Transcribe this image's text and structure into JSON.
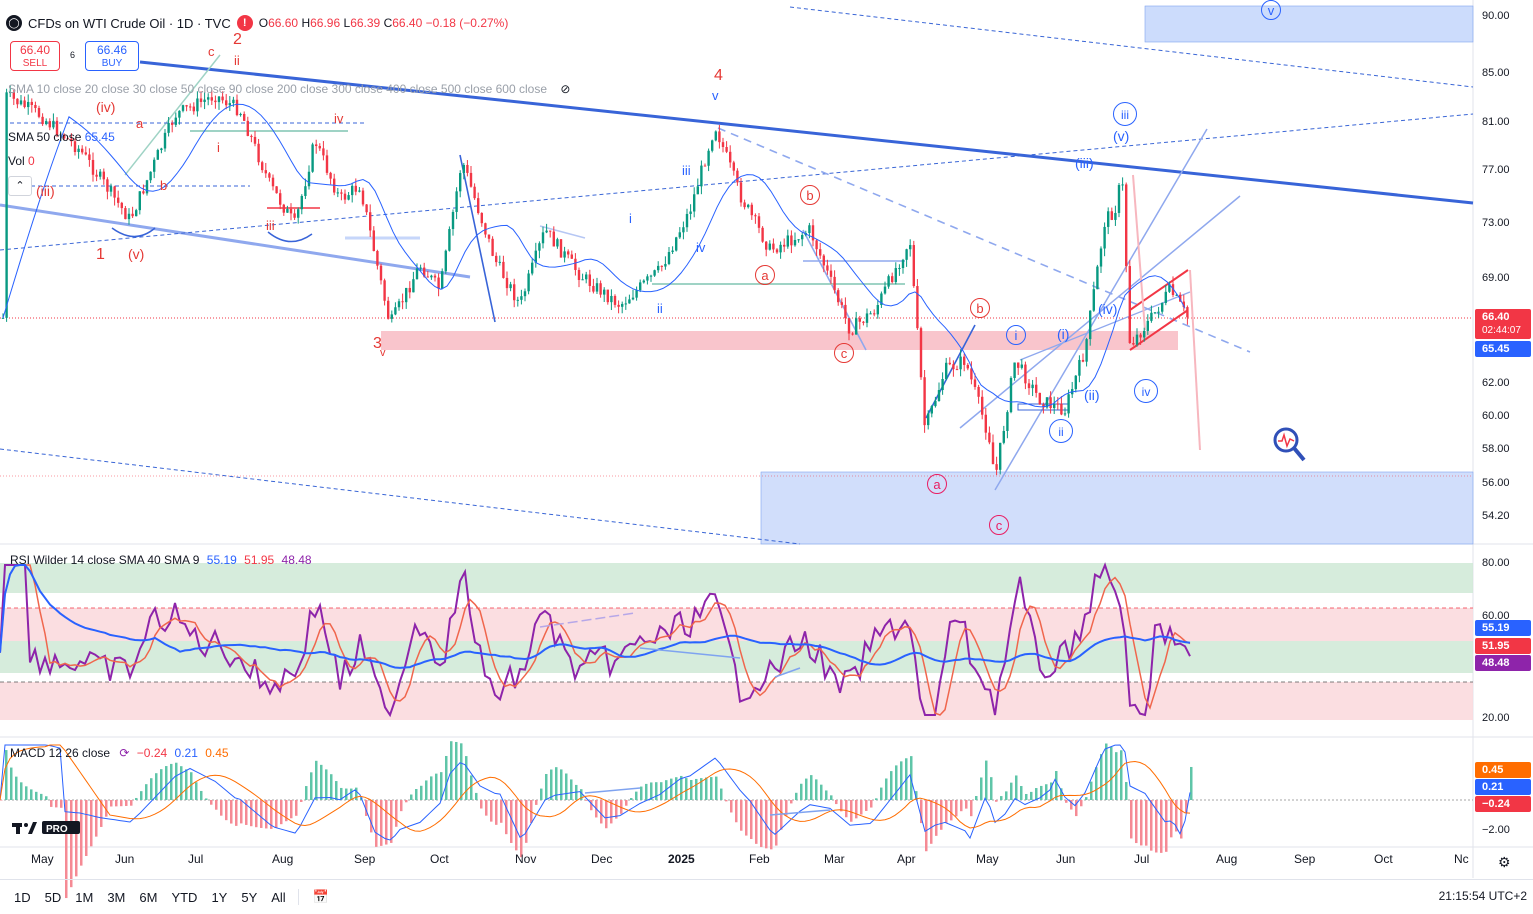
{
  "header": {
    "symbol_title": "CFDs on WTI Crude Oil · 1D · TVC",
    "ohlc": {
      "o_label": "O",
      "o": "66.60",
      "h_label": "H",
      "h": "66.96",
      "l_label": "L",
      "l": "66.39",
      "c_label": "C",
      "c": "66.40",
      "chg": "−0.18 (−0.27%)"
    },
    "sell": {
      "price": "66.40",
      "label": "SELL"
    },
    "buy": {
      "price": "66.46",
      "label": "BUY"
    },
    "spread": "6"
  },
  "legend": {
    "sma_multi": "SMA 10 close 20 close 30 close 50 close 90 close 200 close 300 close 400 close 500 close 600 close",
    "sma50_label": "SMA 50 close",
    "sma50_value": "65.45",
    "vol_label": "Vol",
    "vol_value": "0"
  },
  "price_axis": {
    "ticks": [
      "90.00",
      "85.00",
      "81.00",
      "77.00",
      "73.00",
      "69.00",
      "62.00",
      "60.00",
      "58.00",
      "56.00",
      "54.20"
    ],
    "last_price": "66.40",
    "countdown": "02:44:07",
    "sma_tag": "65.45",
    "colors": {
      "down": "#f23645",
      "sma": "#2962ff",
      "up": "#089981",
      "wave_blue": "#2962ff",
      "wave_red": "#f23645"
    }
  },
  "rsi": {
    "label": "RSI Wilder 14 close SMA 40 SMA 9",
    "v1": "55.19",
    "v2": "51.95",
    "v3": "48.48",
    "ticks": [
      "80.00",
      "60.00",
      "20.00"
    ],
    "tags": [
      "55.19",
      "51.95",
      "48.48"
    ]
  },
  "macd": {
    "label": "MACD 12 26 close",
    "v1": "−0.24",
    "v2": "0.21",
    "v3": "0.45",
    "ticks": [
      "−2.00"
    ],
    "tags": [
      "0.45",
      "0.21",
      "−0.24"
    ]
  },
  "time_axis": [
    "May",
    "Jun",
    "Jul",
    "Aug",
    "Sep",
    "Oct",
    "Nov",
    "Dec",
    "2025",
    "Feb",
    "Mar",
    "Apr",
    "May",
    "Jun",
    "Jul",
    "Aug",
    "Sep",
    "Oct",
    "Nc"
  ],
  "ranges": [
    "1D",
    "5D",
    "1M",
    "3M",
    "6M",
    "YTD",
    "1Y",
    "5Y",
    "All"
  ],
  "clock": "21:15:54 UTC+2",
  "wave_labels": {
    "red": [
      "1",
      "2",
      "3",
      "4",
      "c",
      "ii",
      "(iv)",
      "(iii)",
      "(v)",
      "b",
      "a",
      "i",
      "iii",
      "iv"
    ],
    "blue": [
      "v",
      "iii",
      "iv",
      "i",
      "ii",
      "v"
    ],
    "circled_red": [
      "b",
      "a",
      "c",
      "b",
      "a",
      "c"
    ],
    "circled_blue": [
      "iii",
      "i",
      "ii",
      "iv",
      "v"
    ],
    "blue_paren": [
      "(v)",
      "(iii)",
      "(i)",
      "(iv)",
      "(ii)"
    ]
  },
  "icons": [
    "warning-icon",
    "magnifier-icon",
    "calendar-icon",
    "settings-icon",
    "collapse-icon",
    "eye-icon",
    "refresh-icon"
  ]
}
